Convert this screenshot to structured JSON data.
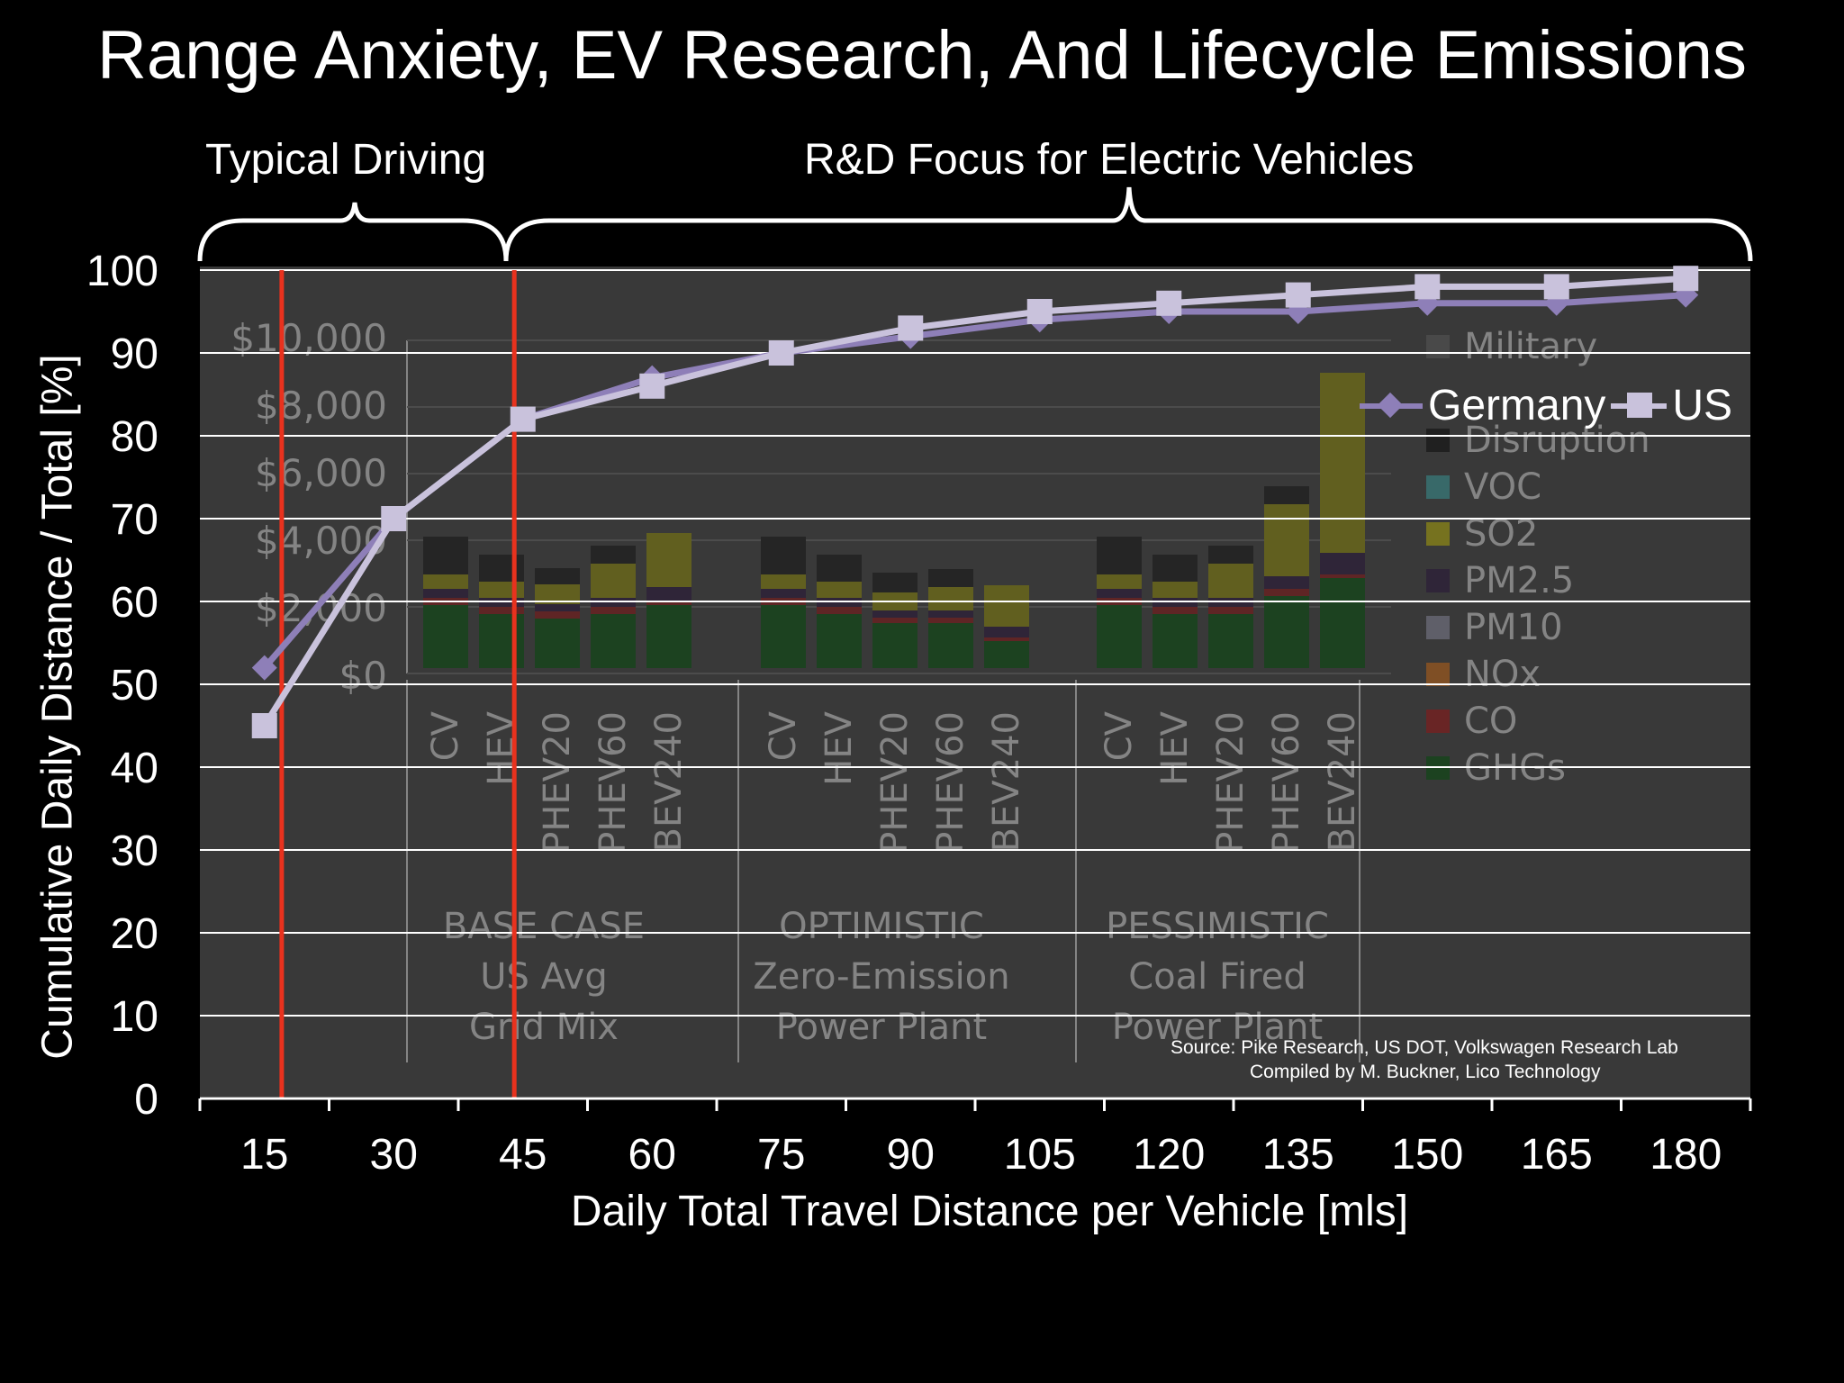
{
  "title": "Range Anxiety, EV Research, And Lifecycle Emissions",
  "headers": {
    "typical": "Typical Driving",
    "rd": "R&D Focus for Electric Vehicles"
  },
  "source": {
    "line1": "Source:  Pike Research, US DOT, Volkswagen Research Lab",
    "line2": "Compiled by M. Buckner, Lico Technology"
  },
  "chart_data": {
    "type": "line",
    "title": "",
    "xlabel": "Daily Total Travel Distance per Vehicle [mls]",
    "ylabel": "Cumulative Daily Distance / Total [%]",
    "x": [
      15,
      30,
      45,
      60,
      75,
      90,
      105,
      120,
      135,
      150,
      165,
      180
    ],
    "ylim": [
      0,
      100
    ],
    "yticks": [
      0,
      10,
      20,
      30,
      40,
      50,
      60,
      70,
      80,
      90,
      100
    ],
    "grid": true,
    "legend": "top-right",
    "series": [
      {
        "name": "Germany",
        "color": "#8e7fb8",
        "marker": "diamond",
        "values": [
          52,
          70,
          82,
          87,
          90,
          92,
          94,
          95,
          95,
          96,
          96,
          97
        ]
      },
      {
        "name": "US",
        "color": "#c9c2dc",
        "marker": "square",
        "values": [
          45,
          70,
          82,
          86,
          90,
          93,
          95,
          96,
          97,
          98,
          98,
          99
        ]
      }
    ],
    "reference_lines": [
      {
        "x": 17,
        "color": "#e8321e"
      },
      {
        "x": 44,
        "color": "#e8321e"
      }
    ],
    "background_image": {
      "y_tick_labels": [
        "$10,000",
        "$8,000",
        "$6,000",
        "$4,000",
        "$2,000",
        "$0"
      ],
      "legend": [
        "Military",
        "Disruption",
        "VOC",
        "SO2",
        "PM2.5",
        "PM10",
        "NOx",
        "CO",
        "GHGs"
      ],
      "bars": [
        "CV",
        "HEV",
        "PHEV20",
        "PHEV60",
        "BEV240"
      ],
      "groups": [
        {
          "lines": [
            "BASE CASE",
            "US Avg",
            "Grid Mix"
          ]
        },
        {
          "lines": [
            "OPTIMISTIC",
            "Zero-Emission",
            "Power Plant"
          ]
        },
        {
          "lines": [
            "PESSIMISTIC",
            "Coal Fired",
            "Power Plant"
          ]
        }
      ]
    }
  }
}
